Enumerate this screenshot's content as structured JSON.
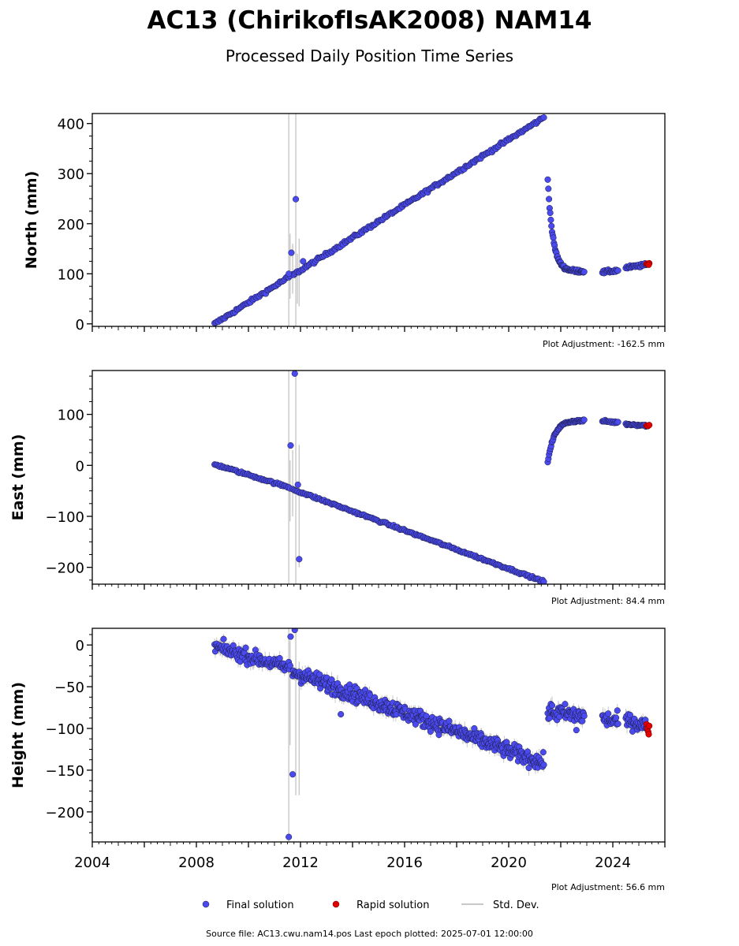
{
  "figure": {
    "title": "AC13 (ChirikofIsAK2008) NAM14",
    "subtitle": "Processed Daily Position Time Series",
    "footer": "Source file: AC13.cwu.nam14.pos  Last epoch plotted: 2025-07-01 12:00:00"
  },
  "legend": {
    "final": "Final solution",
    "rapid": "Rapid solution",
    "std": "Std. Dev."
  },
  "colors": {
    "final": "#4a4af0",
    "rapid": "#e00000",
    "std": "#c8c8c8",
    "edge": "#1a1a3a"
  },
  "chart_data": [
    {
      "type": "scatter",
      "ylabel": "North (mm)",
      "adjustment": "Plot Adjustment: -162.5 mm",
      "xlim": [
        2004,
        2026
      ],
      "ylim": [
        -5,
        420
      ],
      "yticks": [
        0,
        100,
        200,
        300,
        400
      ],
      "ytick_labels": [
        "0",
        "100",
        "200",
        "300",
        "400"
      ],
      "segments": [
        {
          "t0": 2008.7,
          "t1": 2011.6,
          "y0": 0,
          "y1": 95,
          "noise": 3,
          "n": 60
        },
        {
          "t0": 2011.7,
          "t1": 2021.35,
          "y0": 97,
          "y1": 412,
          "noise": 3,
          "n": 200
        },
        {
          "t0": 2021.5,
          "t1": 2022.9,
          "y0": 290,
          "y1": 105,
          "decay": 0.2,
          "asym": 105,
          "noise": 3,
          "n": 60
        },
        {
          "t0": 2023.6,
          "t1": 2024.2,
          "y0": 103,
          "y1": 107,
          "noise": 3,
          "n": 20
        },
        {
          "t0": 2024.5,
          "t1": 2025.3,
          "y0": 112,
          "y1": 118,
          "noise": 3,
          "n": 25
        }
      ],
      "outliers": [
        [
          2011.65,
          142
        ],
        [
          2011.82,
          249
        ],
        [
          2011.55,
          100
        ],
        [
          2012.1,
          125
        ]
      ],
      "stddev_bars": [
        [
          2011.55,
          -5,
          420
        ],
        [
          2011.82,
          -5,
          420
        ],
        [
          2011.95,
          35,
          170
        ],
        [
          2011.6,
          50,
          180
        ],
        [
          2011.7,
          60,
          160
        ],
        [
          2011.88,
          40,
          140
        ]
      ],
      "rapid": [
        [
          2025.3,
          120
        ],
        [
          2025.35,
          119
        ],
        [
          2025.4,
          121
        ],
        [
          2025.38,
          118
        ]
      ]
    },
    {
      "type": "scatter",
      "ylabel": "East (mm)",
      "adjustment": "Plot Adjustment: 84.4 mm",
      "xlim": [
        2004,
        2026
      ],
      "ylim": [
        -233,
        186
      ],
      "yticks": [
        -200,
        -100,
        0,
        100
      ],
      "ytick_labels": [
        "−200",
        "−100",
        "0",
        "100"
      ],
      "segments": [
        {
          "t0": 2008.7,
          "t1": 2011.6,
          "y0": 2,
          "y1": -44,
          "noise": 2,
          "n": 60
        },
        {
          "t0": 2011.7,
          "t1": 2021.35,
          "y0": -47,
          "y1": -228,
          "noise": 2,
          "n": 200
        },
        {
          "t0": 2021.5,
          "t1": 2022.9,
          "y0": 5,
          "y1": 88,
          "decay": 0.25,
          "asym": 88,
          "noise": 2,
          "n": 55
        },
        {
          "t0": 2023.6,
          "t1": 2024.2,
          "y0": 87,
          "y1": 84,
          "noise": 2,
          "n": 18
        },
        {
          "t0": 2024.5,
          "t1": 2025.3,
          "y0": 81,
          "y1": 78,
          "noise": 2,
          "n": 25
        }
      ],
      "outliers": [
        [
          2011.62,
          39
        ],
        [
          2011.78,
          180
        ],
        [
          2011.95,
          -184
        ],
        [
          2011.9,
          -38
        ]
      ],
      "stddev_bars": [
        [
          2011.55,
          -233,
          186
        ],
        [
          2011.82,
          -233,
          186
        ],
        [
          2011.95,
          -200,
          40
        ],
        [
          2011.6,
          -110,
          10
        ],
        [
          2011.7,
          -100,
          30
        ]
      ],
      "rapid": [
        [
          2025.3,
          78
        ],
        [
          2025.35,
          77
        ],
        [
          2025.4,
          79
        ]
      ]
    },
    {
      "type": "scatter",
      "ylabel": "Height (mm)",
      "adjustment": "Plot Adjustment: 56.6 mm",
      "xlabel_ticks": [
        "2004",
        "2008",
        "2012",
        "2016",
        "2020",
        "2024"
      ],
      "xticks": [
        2004,
        2008,
        2012,
        2016,
        2020,
        2024
      ],
      "xlim": [
        2004,
        2026
      ],
      "ylim": [
        -236,
        20
      ],
      "yticks": [
        -200,
        -150,
        -100,
        -50,
        0
      ],
      "ytick_labels": [
        "−200",
        "−150",
        "−100",
        "−50",
        "0"
      ],
      "segments": [
        {
          "t0": 2008.7,
          "t1": 2011.6,
          "y0": -2,
          "y1": -28,
          "noise": 8,
          "n": 110
        },
        {
          "t0": 2011.7,
          "t1": 2021.35,
          "y0": -32,
          "y1": -142,
          "noise": 9,
          "n": 420
        },
        {
          "t0": 2021.5,
          "t1": 2022.9,
          "y0": -80,
          "y1": -85,
          "noise": 10,
          "n": 60
        },
        {
          "t0": 2023.6,
          "t1": 2024.2,
          "y0": -88,
          "y1": -92,
          "noise": 9,
          "n": 25
        },
        {
          "t0": 2024.5,
          "t1": 2025.3,
          "y0": -90,
          "y1": -97,
          "noise": 8,
          "n": 35
        }
      ],
      "outliers": [
        [
          2011.62,
          10
        ],
        [
          2011.7,
          -155
        ],
        [
          2011.55,
          -230
        ],
        [
          2011.78,
          18
        ],
        [
          2013.55,
          -83
        ],
        [
          2022.6,
          -102
        ]
      ],
      "stddev_bars": [
        [
          2011.55,
          -236,
          20
        ],
        [
          2011.82,
          -180,
          20
        ],
        [
          2011.95,
          -180,
          -20
        ],
        [
          2011.6,
          -120,
          5
        ]
      ],
      "rapid": [
        [
          2025.3,
          -95
        ],
        [
          2025.33,
          -100
        ],
        [
          2025.36,
          -104
        ],
        [
          2025.4,
          -97
        ],
        [
          2025.38,
          -107
        ]
      ]
    }
  ]
}
